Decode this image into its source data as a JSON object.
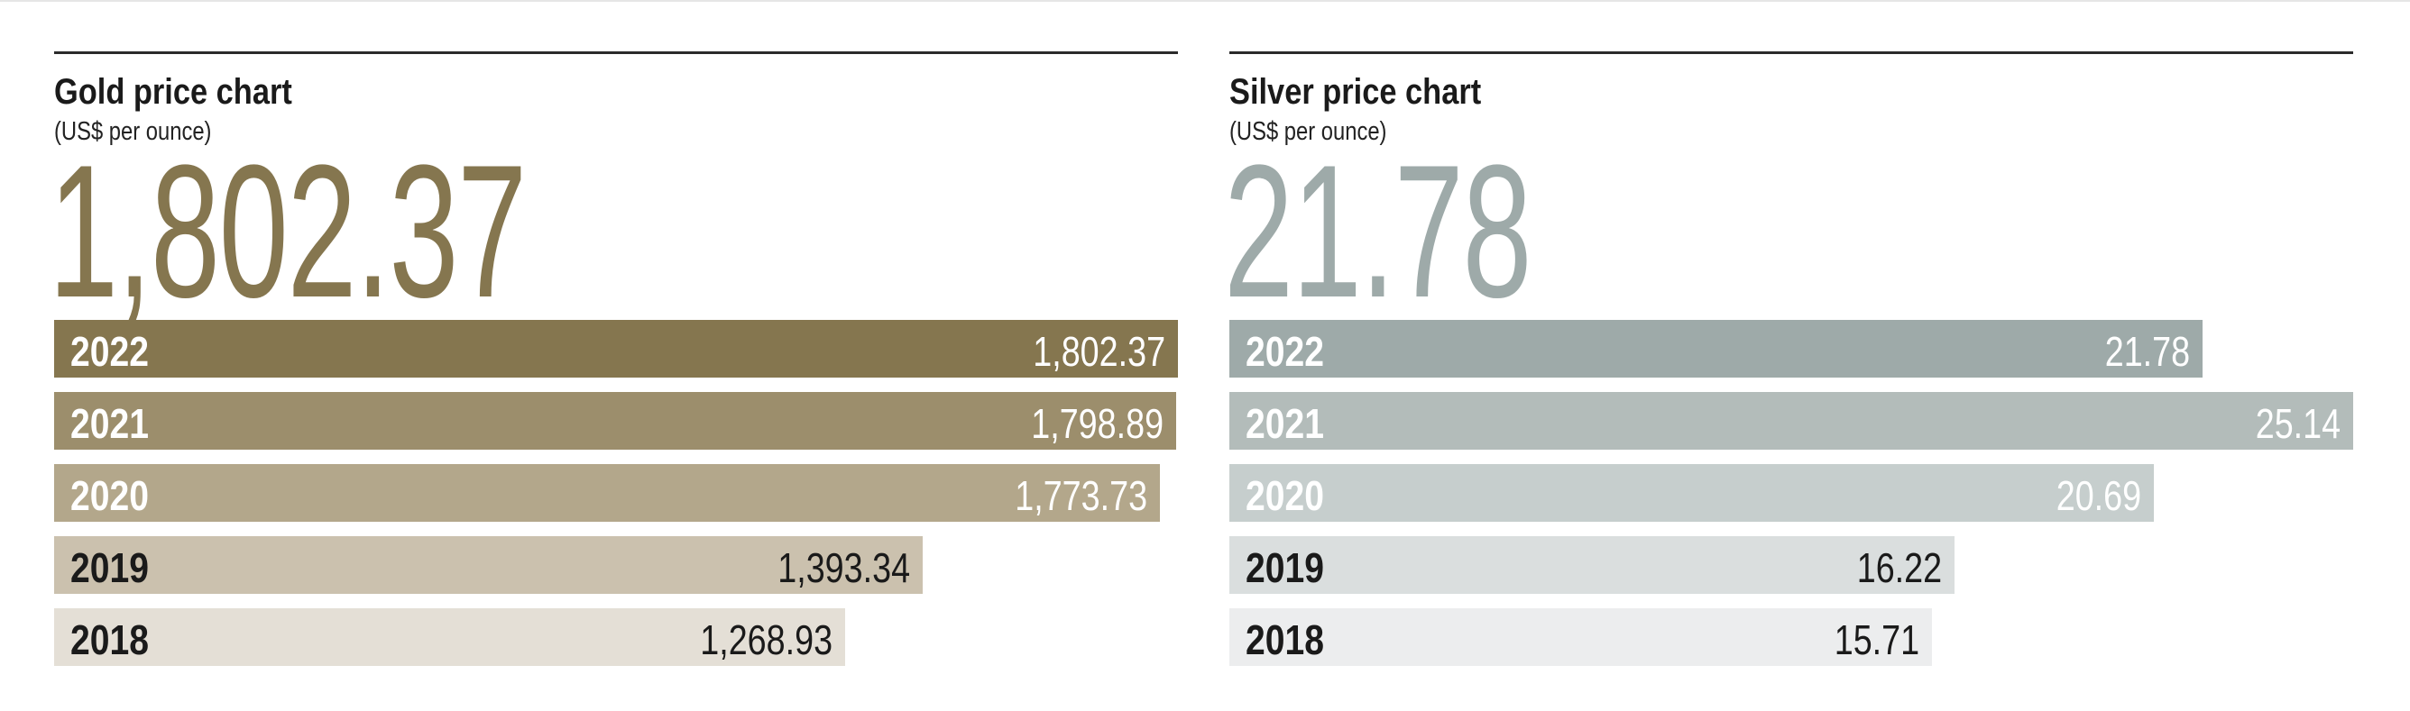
{
  "chart_data": [
    {
      "type": "bar",
      "orientation": "horizontal",
      "title": "Gold price chart",
      "subtitle": "(US$ per ounce)",
      "headline_value": "1,802.37",
      "headline_color": "#85764f",
      "categories": [
        "2022",
        "2021",
        "2020",
        "2019",
        "2018"
      ],
      "values": [
        1802.37,
        1798.89,
        1773.73,
        1393.34,
        1268.93
      ],
      "value_labels": [
        "1,802.37",
        "1,798.89",
        "1,773.73",
        "1,393.34",
        "1,268.93"
      ],
      "bar_colors": [
        "#85764f",
        "#9c8e6c",
        "#b3a78b",
        "#cbc1ae",
        "#e4dfd6"
      ],
      "label_colors": [
        "#ffffff",
        "#ffffff",
        "#ffffff",
        "#1a1a1a",
        "#1a1a1a"
      ],
      "xlim": [
        0,
        1802.37
      ],
      "grid": false
    },
    {
      "type": "bar",
      "orientation": "horizontal",
      "title": "Silver price chart",
      "subtitle": "(US$ per ounce)",
      "headline_value": "21.78",
      "headline_color": "#9eaaa9",
      "categories": [
        "2022",
        "2021",
        "2020",
        "2019",
        "2018"
      ],
      "values": [
        21.78,
        25.14,
        20.69,
        16.22,
        15.71
      ],
      "value_labels": [
        "21.78",
        "25.14",
        "20.69",
        "16.22",
        "15.71"
      ],
      "bar_colors": [
        "#9eaaa9",
        "#b3bcba",
        "#c6cecd",
        "#dadede",
        "#ecedee"
      ],
      "label_colors": [
        "#ffffff",
        "#ffffff",
        "#ffffff",
        "#1a1a1a",
        "#1a1a1a"
      ],
      "xlim": [
        0,
        25.14
      ],
      "grid": false
    }
  ]
}
